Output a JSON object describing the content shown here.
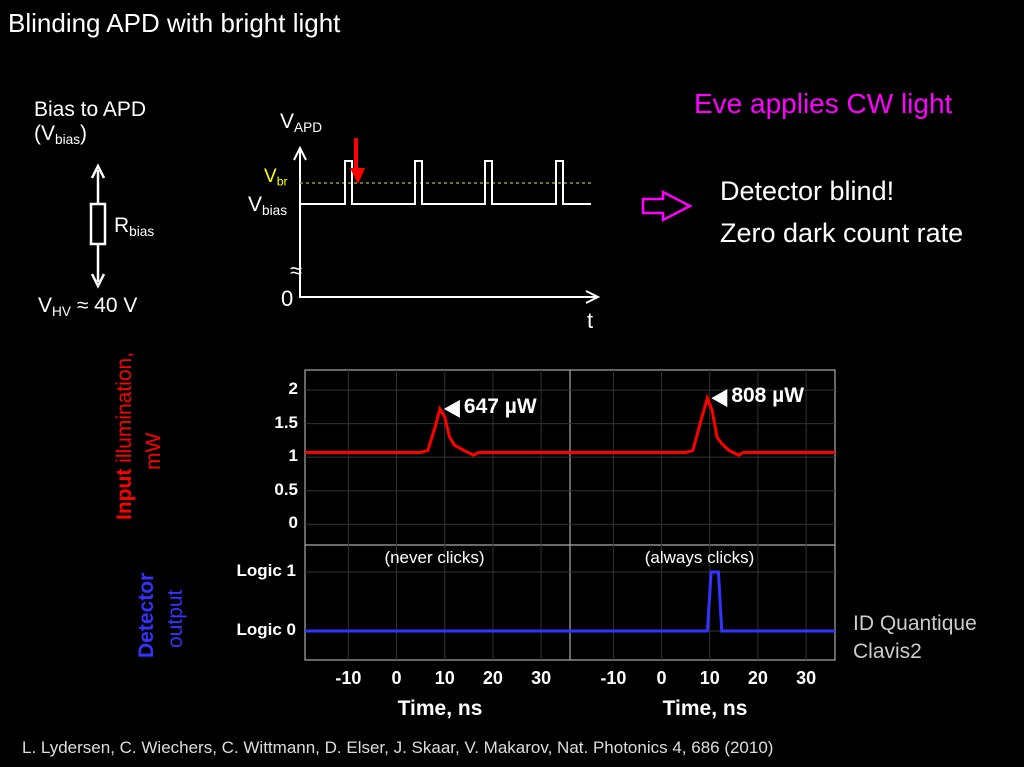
{
  "title": "Blinding APD with bright light",
  "bias": {
    "line1": "Bias to APD",
    "open": "(V",
    "sub": "bias",
    "close": ")",
    "r": "R",
    "r_sub": "bias",
    "hv": "V",
    "hv_sub": "HV",
    "hv_val": "≈ 40 V"
  },
  "timing": {
    "vapd": "V",
    "vapd_sub": "APD",
    "vbr": "V",
    "vbr_sub": "br",
    "vbias": "V",
    "vbias_sub": "bias",
    "zero": "0",
    "t": "t",
    "break": "≈"
  },
  "eve": "Eve applies CW light",
  "result": [
    "Detector blind!",
    "Zero dark count rate"
  ],
  "input_label": {
    "bold": "Input",
    "rest": "illumination,",
    "unit": "mW"
  },
  "detector_label": {
    "bold": "Detector",
    "rest": "output"
  },
  "device": [
    "ID Quantique",
    "Clavis2"
  ],
  "citation": "L. Lydersen, C. Wiechers, C. Wittmann, D. Elser, J. Skaar, V. Makarov, Nat. Photonics 4, 686 (2010)",
  "colors": {
    "red": "#ff0000",
    "blue": "#3333ff",
    "magenta": "#ff00ff",
    "yellow": "#ffff00"
  },
  "chart_data": {
    "type": "line",
    "xlabel": "Time, ns",
    "xlim": [
      -19,
      36
    ],
    "xticks": [
      -10,
      0,
      10,
      20,
      30
    ],
    "panels": [
      {
        "name": "never clicks",
        "annotation": "(never clicks)",
        "peak_label": "647 µW",
        "input_mW": {
          "x": [
            -19,
            5,
            6.5,
            8,
            9,
            10,
            11,
            12,
            14,
            16,
            17,
            20,
            36
          ],
          "y": [
            1.07,
            1.07,
            1.1,
            1.45,
            1.72,
            1.6,
            1.3,
            1.18,
            1.1,
            1.03,
            1.07,
            1.07,
            1.07
          ]
        },
        "output": {
          "x": [
            -19,
            36
          ],
          "y": [
            0,
            0
          ]
        }
      },
      {
        "name": "always clicks",
        "annotation": "(always clicks)",
        "peak_label": "808 µW",
        "input_mW": {
          "x": [
            -19,
            5,
            6.5,
            8,
            9.5,
            10.5,
            11.5,
            12.5,
            14,
            16,
            17,
            20,
            36
          ],
          "y": [
            1.07,
            1.07,
            1.1,
            1.5,
            1.88,
            1.7,
            1.3,
            1.2,
            1.1,
            1.03,
            1.07,
            1.07,
            1.07
          ]
        },
        "output": {
          "x": [
            -19,
            9.5,
            10.3,
            11.8,
            12.5,
            36
          ],
          "y": [
            0,
            0,
            1,
            1,
            0,
            0
          ]
        }
      }
    ],
    "input_yticks": [
      "0",
      "0.5",
      "1",
      "1.5",
      "2"
    ],
    "input_ylim": [
      -0.31,
      2.3
    ],
    "output_yticks": [
      "Logic 0",
      "Logic 1"
    ]
  }
}
